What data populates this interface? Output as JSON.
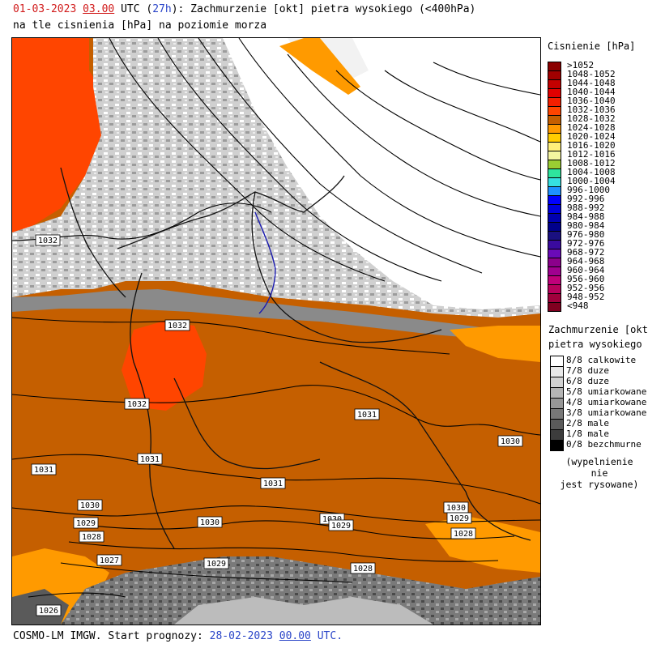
{
  "header": {
    "date": "01-03-2023",
    "time": "03.00",
    "tz": "UTC",
    "lead_open": "(",
    "lead": "27h",
    "lead_close_desc": "): Zachmurzenie [okt] pietra wysokiego (<400hPa)",
    "line2": "na tle cisnienia [hPa] na poziomie morza"
  },
  "footer": {
    "prefix": "COSMO-LM IMGW. Start prognozy:",
    "date": "28-02-2023",
    "time": "00.00",
    "tz": "UTC."
  },
  "isobar_labels": [
    {
      "text": "1032"
    },
    {
      "text": "1032"
    },
    {
      "text": "1032"
    },
    {
      "text": "1031"
    },
    {
      "text": "1030"
    },
    {
      "text": "1031"
    },
    {
      "text": "1031"
    },
    {
      "text": "1031"
    },
    {
      "text": "1030"
    },
    {
      "text": "1029"
    },
    {
      "text": "1028"
    },
    {
      "text": "1030"
    },
    {
      "text": "1030"
    },
    {
      "text": "1029"
    },
    {
      "text": "1030"
    },
    {
      "text": "1029"
    },
    {
      "text": "1028"
    },
    {
      "text": "1027"
    },
    {
      "text": "1029"
    },
    {
      "text": "1028"
    },
    {
      "text": "1026"
    }
  ],
  "pressure_legend": {
    "title": "Cisnienie [hPa]",
    "items": [
      {
        "label": ">1052",
        "color": "#8b0000"
      },
      {
        "label": "1048-1052",
        "color": "#a10000"
      },
      {
        "label": "1044-1048",
        "color": "#c40000"
      },
      {
        "label": "1040-1044",
        "color": "#e00000"
      },
      {
        "label": "1036-1040",
        "color": "#f41f00"
      },
      {
        "label": "1032-1036",
        "color": "#ff4500"
      },
      {
        "label": "1028-1032",
        "color": "#c55f00"
      },
      {
        "label": "1024-1028",
        "color": "#ff9a00"
      },
      {
        "label": "1020-1024",
        "color": "#ffcc00"
      },
      {
        "label": "1016-1020",
        "color": "#fff07a"
      },
      {
        "label": "1012-1016",
        "color": "#f5f5a0"
      },
      {
        "label": "1008-1012",
        "color": "#9acd32"
      },
      {
        "label": "1004-1008",
        "color": "#2ee59d"
      },
      {
        "label": "1000-1004",
        "color": "#36e0e0"
      },
      {
        "label": "996-1000",
        "color": "#1e90ff"
      },
      {
        "label": "992-996",
        "color": "#0000ff"
      },
      {
        "label": "988-992",
        "color": "#0000dd"
      },
      {
        "label": "984-988",
        "color": "#0000b0"
      },
      {
        "label": "980-984",
        "color": "#00008b"
      },
      {
        "label": "976-980",
        "color": "#1a1080"
      },
      {
        "label": "972-976",
        "color": "#3a0a9e"
      },
      {
        "label": "968-972",
        "color": "#6a0ab8"
      },
      {
        "label": "964-968",
        "color": "#8b008b"
      },
      {
        "label": "960-964",
        "color": "#a0008f"
      },
      {
        "label": "956-960",
        "color": "#c0007a"
      },
      {
        "label": "952-956",
        "color": "#b8005c"
      },
      {
        "label": "948-952",
        "color": "#a0003c"
      },
      {
        "label": "<948",
        "color": "#800020"
      }
    ]
  },
  "cloud_legend": {
    "title_line1": "Zachmurzenie [okt]",
    "title_line2": "pietra wysokiego",
    "items": [
      {
        "label": "8/8 calkowite",
        "color": "#ffffff"
      },
      {
        "label": "7/8 duze",
        "color": "#e8e8e8"
      },
      {
        "label": "6/8 duze",
        "color": "#d2d2d2"
      },
      {
        "label": "5/8 umiarkowane",
        "color": "#b4b4b4"
      },
      {
        "label": "4/8 umiarkowane",
        "color": "#969696"
      },
      {
        "label": "3/8 umiarkowane",
        "color": "#787878"
      },
      {
        "label": "2/8 male",
        "color": "#5a5a5a"
      },
      {
        "label": "1/8 male",
        "color": "#3c3c3c"
      },
      {
        "label": "0/8 bezchmurne",
        "color": "#000000"
      }
    ],
    "note_line1": "(wypelnienie nie",
    "note_line2": "jest rysowane)"
  }
}
